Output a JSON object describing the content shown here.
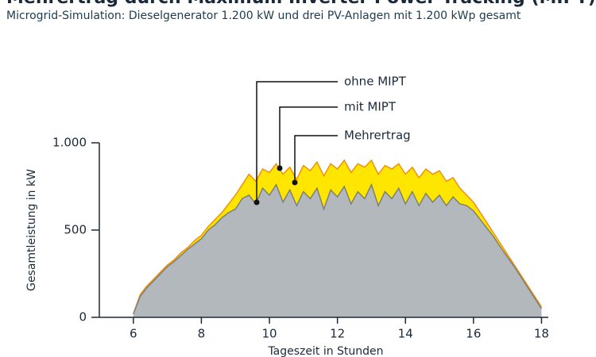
{
  "chart_data": {
    "type": "area",
    "title": "Mehrertrag durch Maximum Inverter Power Tracking (MIPT)",
    "subtitle": "Microgrid-Simulation: Dieselgenerator 1.200 kW und drei PV-Anlagen mit 1.200 kWp gesamt",
    "x_label": "Tageszeit in Stunden",
    "y_label": "Gesamtleistung in kW",
    "annotation": "Mehrertrag",
    "xlim": [
      5,
      18.2
    ],
    "xticks": [
      6,
      8,
      10,
      12,
      14,
      16,
      18
    ],
    "ylim": [
      0,
      1000
    ],
    "yticks": [
      0,
      500,
      {
        "value": 1000,
        "label": "1.000"
      }
    ],
    "x": [
      6.0,
      6.2,
      6.4,
      6.6,
      6.8,
      7.0,
      7.2,
      7.4,
      7.6,
      7.8,
      8.0,
      8.2,
      8.4,
      8.6,
      8.8,
      9.0,
      9.2,
      9.4,
      9.6,
      9.8,
      10.0,
      10.2,
      10.4,
      10.6,
      10.8,
      11.0,
      11.2,
      11.4,
      11.6,
      11.8,
      12.0,
      12.2,
      12.4,
      12.6,
      12.8,
      13.0,
      13.2,
      13.4,
      13.6,
      13.8,
      14.0,
      14.2,
      14.4,
      14.6,
      14.8,
      15.0,
      15.2,
      15.4,
      15.6,
      15.8,
      16.0,
      16.2,
      16.4,
      16.6,
      16.8,
      17.0,
      17.2,
      17.4,
      17.6,
      17.8,
      18.0
    ],
    "series": [
      {
        "name": "ohne MIPT",
        "color": "#b3b8bd",
        "line_color": "#7a7f84",
        "values": [
          20,
          120,
          170,
          210,
          250,
          290,
          320,
          355,
          390,
          420,
          450,
          500,
          530,
          570,
          600,
          620,
          680,
          700,
          650,
          740,
          700,
          760,
          660,
          730,
          640,
          720,
          680,
          740,
          620,
          730,
          690,
          750,
          650,
          720,
          680,
          760,
          640,
          720,
          680,
          740,
          650,
          720,
          640,
          710,
          660,
          700,
          640,
          690,
          650,
          640,
          610,
          560,
          510,
          460,
          400,
          345,
          290,
          230,
          170,
          110,
          50
        ]
      },
      {
        "name": "mit MIPT",
        "color": "#ffe600",
        "line_color": "#f39200",
        "values": [
          20,
          130,
          180,
          220,
          260,
          300,
          330,
          370,
          400,
          440,
          470,
          520,
          560,
          600,
          650,
          700,
          760,
          820,
          780,
          850,
          830,
          880,
          820,
          860,
          790,
          870,
          840,
          890,
          810,
          880,
          850,
          900,
          830,
          880,
          860,
          900,
          820,
          870,
          850,
          880,
          820,
          860,
          800,
          850,
          820,
          840,
          780,
          800,
          740,
          700,
          660,
          600,
          540,
          480,
          420,
          360,
          300,
          240,
          180,
          120,
          60
        ]
      }
    ]
  }
}
